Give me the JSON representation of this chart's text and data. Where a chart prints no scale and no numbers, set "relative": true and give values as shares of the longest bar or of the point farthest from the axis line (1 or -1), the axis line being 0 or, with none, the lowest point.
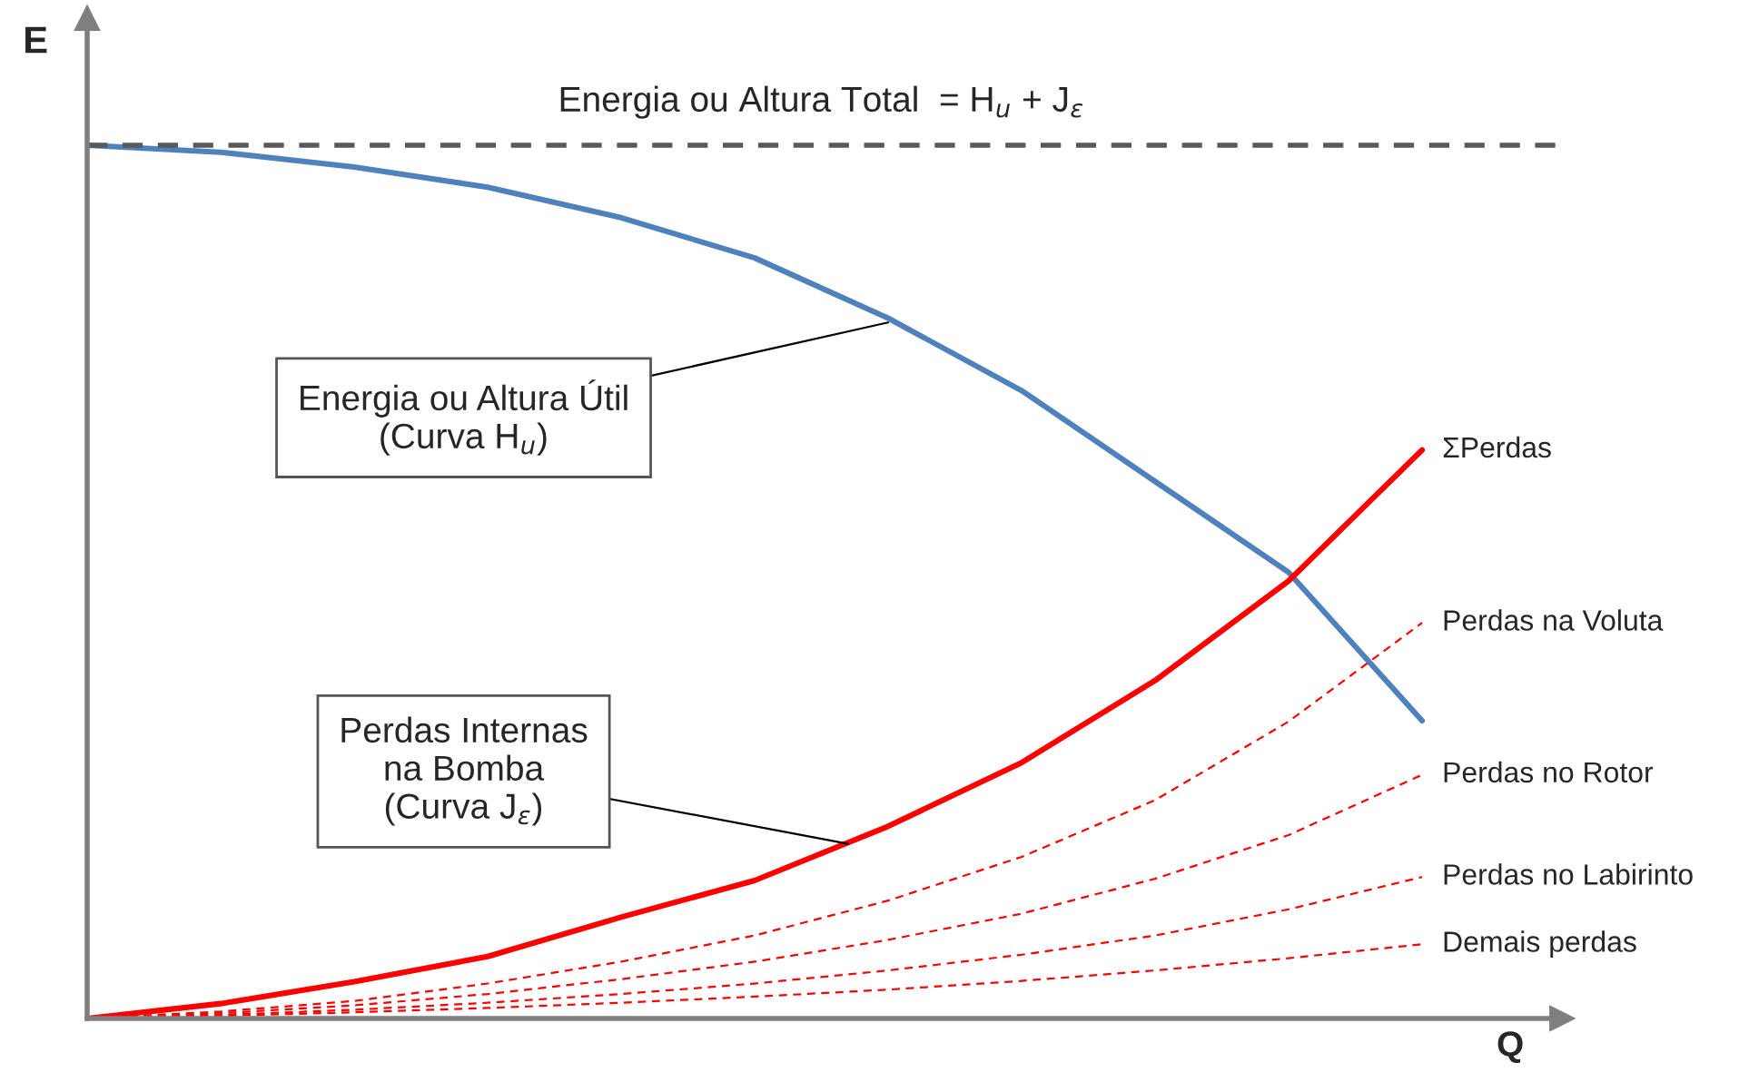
{
  "chart_data": {
    "type": "line",
    "relative": true,
    "xlabel": "Q",
    "ylabel": "E",
    "legend": false,
    "categories": [
      null,
      null,
      null,
      null,
      null,
      null,
      null,
      null,
      null,
      null,
      null
    ],
    "series": [
      {
        "color": "#4f81bd",
        "line_style": "solid",
        "values": [
          1.0,
          0.992,
          0.975,
          0.952,
          0.917,
          0.871,
          0.802,
          0.719,
          0.615,
          0.511,
          0.341
        ]
      },
      {
        "name": "ΣPerdas",
        "color": "#ff0000",
        "line_style": "solid",
        "values": [
          0,
          0.017,
          0.042,
          0.071,
          0.116,
          0.158,
          0.22,
          0.293,
          0.387,
          0.501,
          0.651
        ]
      },
      {
        "name": "Perdas na Voluta",
        "color": "#ff0000",
        "line_style": "dashed",
        "values": [
          0,
          0.008,
          0.02,
          0.04,
          0.065,
          0.095,
          0.135,
          0.185,
          0.25,
          0.34,
          0.453
        ]
      },
      {
        "name": "Perdas no Rotor",
        "color": "#ff0000",
        "line_style": "dashed",
        "values": [
          0,
          0.006,
          0.015,
          0.028,
          0.045,
          0.065,
          0.09,
          0.12,
          0.16,
          0.21,
          0.279
        ]
      },
      {
        "name": "Perdas no Labirinto",
        "color": "#ff0000",
        "line_style": "dashed",
        "values": [
          0,
          0.004,
          0.01,
          0.018,
          0.028,
          0.04,
          0.055,
          0.073,
          0.095,
          0.125,
          0.162
        ]
      },
      {
        "name": "Demais perdas",
        "color": "#ff0000",
        "line_style": "dashed",
        "values": [
          0,
          0.003,
          0.007,
          0.012,
          0.018,
          0.025,
          0.033,
          0.043,
          0.055,
          0.069,
          0.085
        ]
      }
    ],
    "ref_lines": [
      {
        "axis": "y",
        "value": 1.0,
        "label": "Energia ou Altura Total  = H$_{u}$ + J$_{ε}$",
        "color": "#595959",
        "line_style": "dashed"
      }
    ],
    "annotations": [
      "Energia ou Altura Útil\n(Curva H$_{u}$)",
      "Perdas Internas\nna Bomba\n(Curva J$_{ε}$)"
    ]
  }
}
